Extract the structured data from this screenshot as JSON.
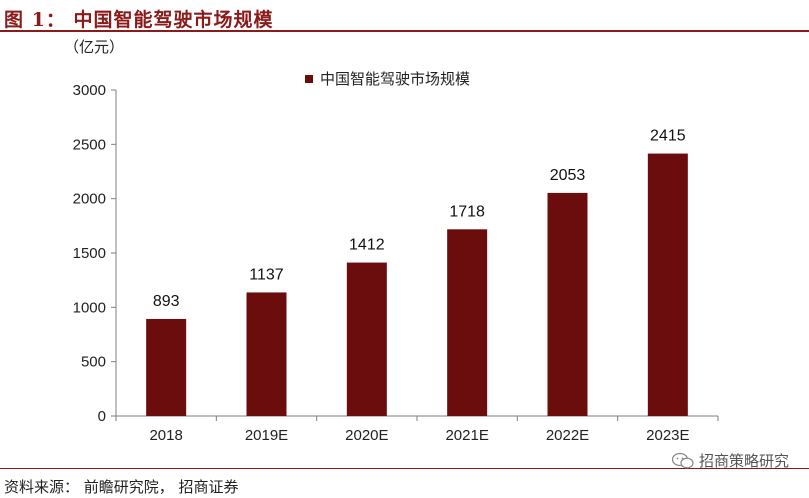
{
  "header": {
    "title": "图 1： 中国智能驾驶市场规模"
  },
  "footer": {
    "source": "资料来源： 前瞻研究院， 招商证券",
    "watermark": "招商策略研究"
  },
  "colors": {
    "bar": "#6b0d0d",
    "accent": "#8b1a1a",
    "axis": "#7f7f7f"
  },
  "icons": {
    "watermark": "wechat-icon"
  },
  "chart_data": {
    "type": "bar",
    "unit_label": "（亿元）",
    "categories": [
      "2018",
      "2019E",
      "2020E",
      "2021E",
      "2022E",
      "2023E"
    ],
    "series": [
      {
        "name": "中国智能驾驶市场规模",
        "values": [
          893,
          1137,
          1412,
          1718,
          2053,
          2415
        ]
      }
    ],
    "ylim": [
      0,
      3000
    ],
    "yticks": [
      0,
      500,
      1000,
      1500,
      2000,
      2500,
      3000
    ],
    "grid": false,
    "legend_position": "top-left"
  }
}
